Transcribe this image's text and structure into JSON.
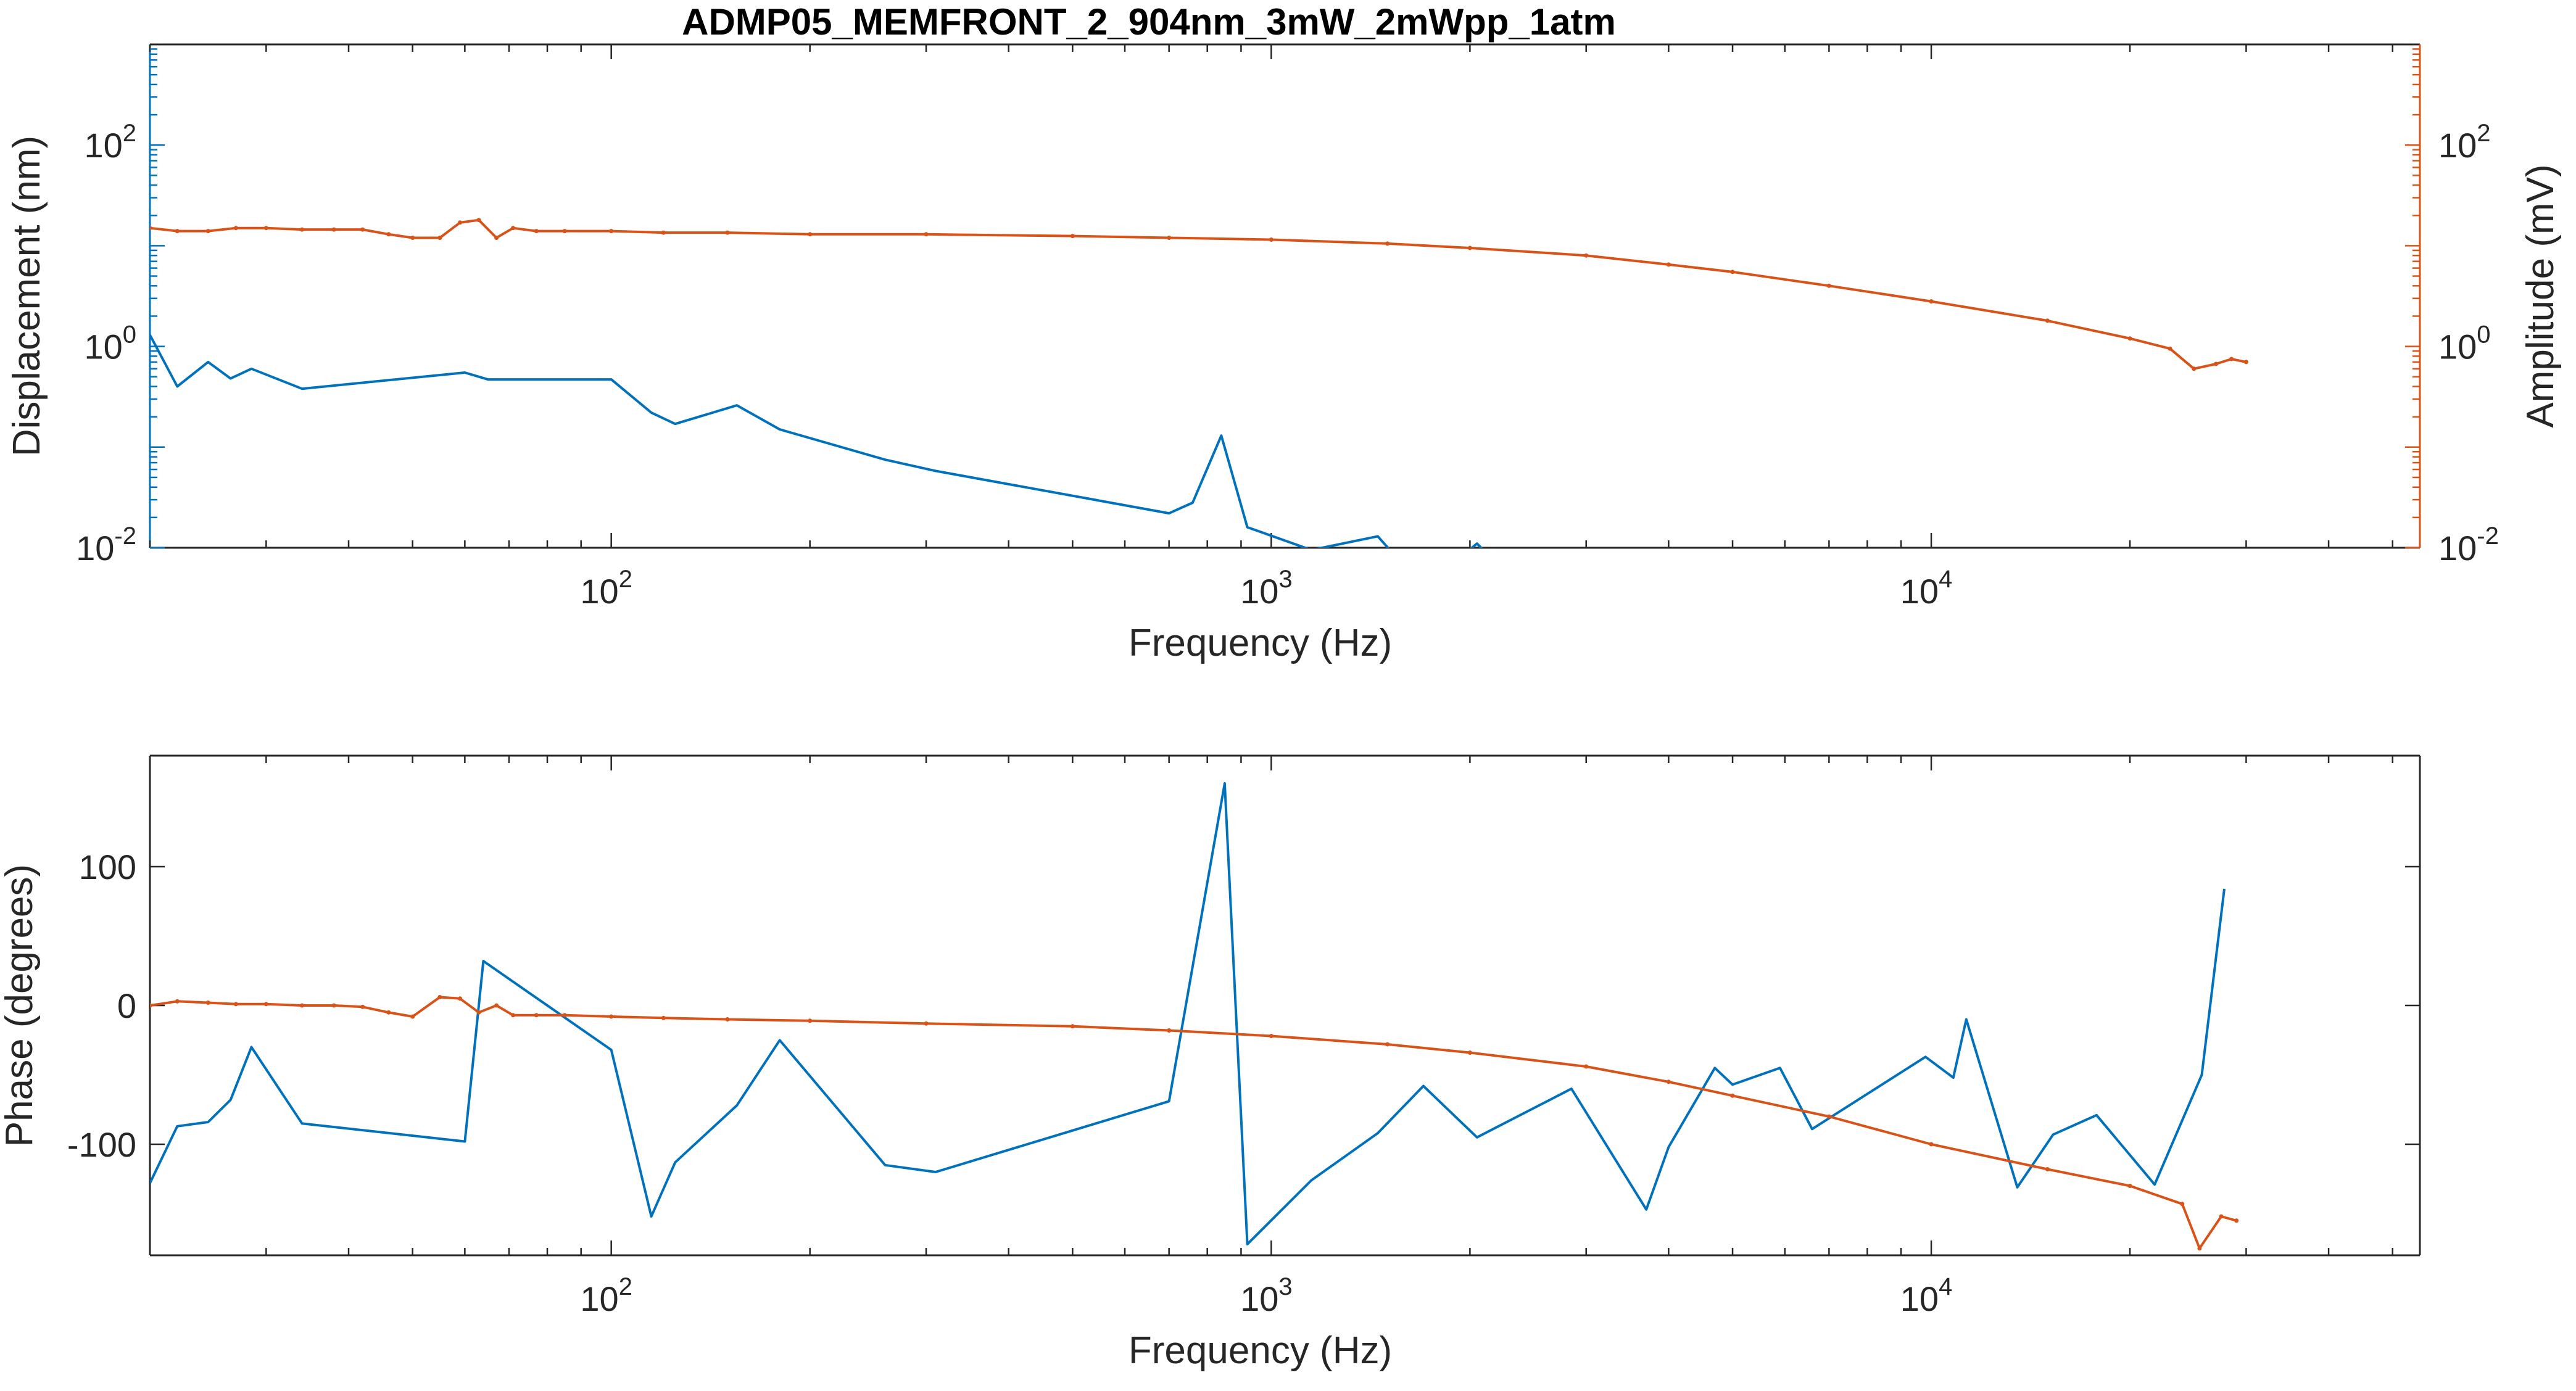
{
  "colors": {
    "blue": "#0072BD",
    "orange": "#D95319",
    "axis": "#262626",
    "frame": "#262626"
  },
  "chart_data": [
    {
      "type": "line",
      "title": "ADMP05_MEMFRONT_2_904nm_3mW_2mWpp_1atm",
      "xlabel": "Frequency (Hz)",
      "ylabel": "Displacement (nm)",
      "y2label": "Amplitude (mV)",
      "xscale": "log",
      "yscale": "log",
      "xlim": [
        20,
        55000
      ],
      "ylim": [
        0.01,
        1000
      ],
      "y2lim": [
        0.01,
        1000
      ],
      "x_ticks": [
        {
          "value": 100,
          "base": "10",
          "exp": "2"
        },
        {
          "value": 1000,
          "base": "10",
          "exp": "3"
        },
        {
          "value": 10000,
          "base": "10",
          "exp": "4"
        }
      ],
      "y_ticks": [
        {
          "value": 0.01,
          "base": "10",
          "exp": "-2"
        },
        {
          "value": 1,
          "base": "10",
          "exp": "0"
        },
        {
          "value": 100,
          "base": "10",
          "exp": "2"
        }
      ],
      "y2_ticks": [
        {
          "value": 0.01,
          "base": "10",
          "exp": "-2"
        },
        {
          "value": 1,
          "base": "10",
          "exp": "0"
        },
        {
          "value": 100,
          "base": "10",
          "exp": "2"
        }
      ],
      "series": [
        {
          "axis": "left",
          "color": "#0072BD",
          "markers": false,
          "x": [
            20,
            22,
            24.5,
            26.5,
            28.5,
            34,
            60,
            65,
            100,
            115,
            125,
            155,
            180,
            260,
            310,
            700,
            760,
            840,
            920,
            1150,
            1450,
            1700,
            2050,
            2150
          ],
          "y": [
            1.3,
            0.4,
            0.7,
            0.48,
            0.6,
            0.38,
            0.55,
            0.47,
            0.47,
            0.22,
            0.17,
            0.26,
            0.15,
            0.075,
            0.058,
            0.022,
            0.028,
            0.13,
            0.016,
            0.0095,
            0.013,
            0.004,
            0.011,
            0.008
          ]
        },
        {
          "axis": "right",
          "color": "#D95319",
          "markers": true,
          "x": [
            20,
            22,
            24.5,
            27,
            30,
            34,
            38,
            42,
            46,
            50,
            55,
            59,
            63,
            67,
            71,
            77,
            85,
            100,
            120,
            150,
            200,
            300,
            500,
            700,
            1000,
            1500,
            2000,
            3000,
            4000,
            5000,
            7000,
            10000,
            15000,
            20000,
            23000,
            25000,
            27000,
            28500,
            30000
          ],
          "y": [
            15,
            14,
            14,
            15,
            15,
            14.5,
            14.5,
            14.5,
            13,
            12,
            12,
            17,
            18,
            12,
            15,
            14,
            14,
            14,
            13.5,
            13.5,
            13,
            13,
            12.5,
            12,
            11.5,
            10.5,
            9.5,
            8,
            6.5,
            5.5,
            4,
            2.8,
            1.8,
            1.2,
            0.95,
            0.6,
            0.67,
            0.75,
            0.7
          ]
        }
      ]
    },
    {
      "type": "line",
      "xlabel": "Frequency (Hz)",
      "ylabel": "Phase (degrees)",
      "xscale": "log",
      "xlim": [
        20,
        55000
      ],
      "ylim": [
        -180,
        180
      ],
      "x_ticks": [
        {
          "value": 100,
          "base": "10",
          "exp": "2"
        },
        {
          "value": 1000,
          "base": "10",
          "exp": "3"
        },
        {
          "value": 10000,
          "base": "10",
          "exp": "4"
        }
      ],
      "y_ticks": [
        {
          "value": 100,
          "label": "100"
        },
        {
          "value": 0,
          "label": "0"
        },
        {
          "value": -100,
          "label": "-100"
        }
      ],
      "series": [
        {
          "axis": "left",
          "color": "#0072BD",
          "markers": false,
          "x": [
            20,
            22,
            24.5,
            26.5,
            28.5,
            34,
            60,
            64,
            100,
            115,
            125,
            155,
            180,
            260,
            310,
            700,
            850,
            920,
            1150,
            1450,
            1700,
            2050,
            2850,
            3700,
            4000,
            4700,
            5000,
            5900,
            6600,
            9800,
            10800,
            11300,
            13500,
            15300,
            17800,
            21800,
            25700,
            27800
          ],
          "y": [
            -128,
            -87,
            -84,
            -68,
            -30,
            -85,
            -98,
            32,
            -32,
            -152,
            -113,
            -72,
            -25,
            -115,
            -120,
            -69,
            160,
            -172,
            -126,
            -92,
            -58,
            -95,
            -60,
            -147,
            -102,
            -45,
            -57,
            -45,
            -89,
            -37,
            -52,
            -10,
            -131,
            -93,
            -79,
            -129,
            -50,
            84
          ]
        },
        {
          "axis": "left",
          "color": "#D95319",
          "markers": true,
          "x": [
            20,
            22,
            24.5,
            27,
            30,
            34,
            38,
            42,
            46,
            50,
            55,
            59,
            63,
            67,
            71,
            77,
            85,
            100,
            120,
            150,
            200,
            300,
            500,
            700,
            1000,
            1500,
            2000,
            3000,
            4000,
            5000,
            7000,
            10000,
            15000,
            20000,
            24000,
            25500,
            27500,
            29000
          ],
          "y": [
            0,
            3,
            2,
            1,
            1,
            0,
            0,
            -1,
            -5,
            -8,
            6,
            5,
            -5,
            0,
            -7,
            -7,
            -7,
            -8,
            -9,
            -10,
            -11,
            -13,
            -15,
            -18,
            -22,
            -28,
            -34,
            -44,
            -55,
            -65,
            -80,
            -100,
            -118,
            -130,
            -143,
            -175,
            -152,
            -155
          ]
        }
      ]
    }
  ]
}
